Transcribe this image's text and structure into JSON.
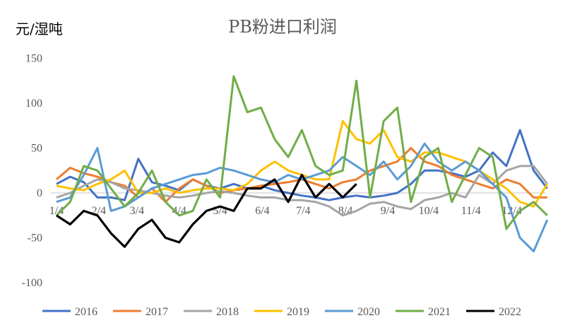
{
  "chart_data": {
    "type": "line",
    "title": "PB粉进口利润",
    "ylabel": "元/湿吨",
    "xlabel": "",
    "ylim": [
      -100,
      150
    ],
    "yticks": [
      150,
      100,
      50,
      0,
      -50,
      -100
    ],
    "xticks": [
      "1/4",
      "2/4",
      "3/4",
      "4/4",
      "5/4",
      "6/4",
      "7/4",
      "8/4",
      "9/4",
      "10/4",
      "11/4",
      "12/4"
    ],
    "grid": "zero line only",
    "legend": "bottom",
    "x": [
      "1/4",
      "1/14",
      "1/24",
      "2/3",
      "2/13",
      "2/23",
      "3/5",
      "3/15",
      "3/25",
      "4/4",
      "4/14",
      "4/24",
      "5/4",
      "5/14",
      "5/24",
      "6/3",
      "6/13",
      "6/23",
      "7/3",
      "7/13",
      "7/23",
      "8/2",
      "8/12",
      "8/22",
      "9/1",
      "9/11",
      "9/21",
      "10/1",
      "10/11",
      "10/21",
      "10/31",
      "11/10",
      "11/20",
      "11/30",
      "12/10",
      "12/20",
      "12/30"
    ],
    "series": [
      {
        "name": "2016",
        "color": "#4472C4",
        "values": [
          10,
          18,
          12,
          -5,
          -5,
          -8,
          38,
          12,
          8,
          3,
          15,
          8,
          5,
          10,
          5,
          8,
          3,
          0,
          -3,
          -5,
          -8,
          -5,
          -3,
          -5,
          -3,
          0,
          10,
          25,
          25,
          22,
          18,
          25,
          45,
          30,
          70,
          25,
          5
        ]
      },
      {
        "name": "2017",
        "color": "#ED7D31",
        "values": [
          15,
          28,
          22,
          18,
          12,
          8,
          -5,
          5,
          -10,
          5,
          15,
          8,
          0,
          3,
          5,
          8,
          10,
          12,
          15,
          10,
          5,
          12,
          15,
          25,
          30,
          35,
          50,
          35,
          30,
          20,
          15,
          10,
          5,
          15,
          10,
          -5,
          -5
        ]
      },
      {
        "name": "2018",
        "color": "#A5A5A5",
        "values": [
          -5,
          0,
          8,
          15,
          12,
          5,
          3,
          0,
          -3,
          -5,
          -3,
          0,
          2,
          0,
          -3,
          -5,
          -5,
          -8,
          -8,
          -10,
          -15,
          -25,
          -20,
          -12,
          -10,
          -15,
          -18,
          -8,
          -5,
          0,
          -5,
          20,
          10,
          25,
          30,
          30,
          10
        ]
      },
      {
        "name": "2019",
        "color": "#FFC000",
        "values": [
          8,
          5,
          3,
          10,
          15,
          25,
          0,
          0,
          5,
          0,
          3,
          5,
          5,
          3,
          10,
          25,
          35,
          25,
          20,
          15,
          15,
          80,
          60,
          55,
          70,
          40,
          35,
          45,
          45,
          40,
          35,
          25,
          15,
          5,
          -10,
          -15,
          10
        ]
      },
      {
        "name": "2020",
        "color": "#5B9BD5",
        "values": [
          -10,
          -5,
          20,
          50,
          -20,
          -15,
          -5,
          5,
          10,
          15,
          20,
          22,
          28,
          25,
          20,
          15,
          12,
          20,
          15,
          20,
          25,
          40,
          30,
          20,
          35,
          15,
          30,
          55,
          35,
          25,
          35,
          25,
          10,
          -5,
          -50,
          -65,
          -30
        ]
      },
      {
        "name": "2021",
        "color": "#70AD47",
        "values": [
          -25,
          -10,
          30,
          25,
          5,
          -15,
          0,
          25,
          -10,
          -25,
          -20,
          15,
          -5,
          130,
          90,
          95,
          60,
          40,
          70,
          30,
          20,
          25,
          125,
          -5,
          80,
          95,
          -10,
          40,
          50,
          -10,
          20,
          50,
          40,
          -40,
          -20,
          -10,
          -25
        ]
      },
      {
        "name": "2022",
        "color": "#000000",
        "values": [
          -25,
          -35,
          -20,
          -25,
          -45,
          -60,
          -40,
          -30,
          -50,
          -55,
          -35,
          -20,
          -15,
          -20,
          5,
          5,
          15,
          -10,
          20,
          -5,
          10,
          -5,
          10,
          null,
          null,
          null,
          null,
          null,
          null,
          null,
          null,
          null,
          null,
          null,
          null,
          null,
          null
        ]
      }
    ]
  }
}
